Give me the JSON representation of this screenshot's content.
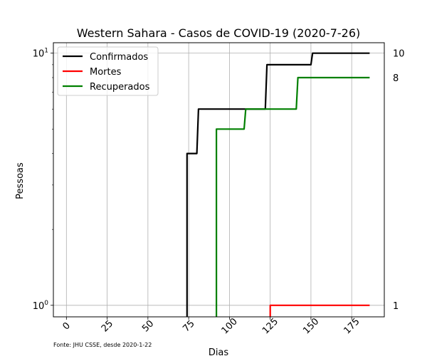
{
  "chart_data": {
    "type": "line",
    "title": "Western Sahara - Casos de COVID-19 (2020-7-26)",
    "xlabel": "Dias",
    "ylabel": "Pessoas",
    "source_note": "Fonte: JHU CSSE, desde 2020-1-22",
    "y_scale": "log",
    "xlim": [
      -8,
      195
    ],
    "ylim": [
      0.9,
      11
    ],
    "grid": true,
    "legend_position": "top-left",
    "x_ticks": [
      {
        "value": 0,
        "label": "0"
      },
      {
        "value": 25,
        "label": "25"
      },
      {
        "value": 50,
        "label": "50"
      },
      {
        "value": 75,
        "label": "75"
      },
      {
        "value": 100,
        "label": "100"
      },
      {
        "value": 125,
        "label": "125"
      },
      {
        "value": 150,
        "label": "150"
      },
      {
        "value": 175,
        "label": "175"
      }
    ],
    "y_ticks": [
      {
        "value": 1,
        "base": "10",
        "exp": "0"
      },
      {
        "value": 10,
        "base": "10",
        "exp": "1"
      }
    ],
    "series": [
      {
        "name": "Confirmados",
        "color": "#000000",
        "end_label": "10",
        "points": [
          [
            74,
            0
          ],
          [
            74,
            4
          ],
          [
            80,
            4
          ],
          [
            81,
            6
          ],
          [
            122,
            6
          ],
          [
            123,
            9
          ],
          [
            150,
            9
          ],
          [
            151,
            10
          ],
          [
            186,
            10
          ]
        ]
      },
      {
        "name": "Mortes",
        "color": "#ff0000",
        "end_label": "1",
        "points": [
          [
            125,
            0
          ],
          [
            125,
            1
          ],
          [
            186,
            1
          ]
        ]
      },
      {
        "name": "Recuperados",
        "color": "#008000",
        "end_label": "8",
        "points": [
          [
            92,
            0
          ],
          [
            92,
            5
          ],
          [
            109,
            5
          ],
          [
            110,
            6
          ],
          [
            141,
            6
          ],
          [
            142,
            8
          ],
          [
            186,
            8
          ]
        ]
      }
    ]
  }
}
